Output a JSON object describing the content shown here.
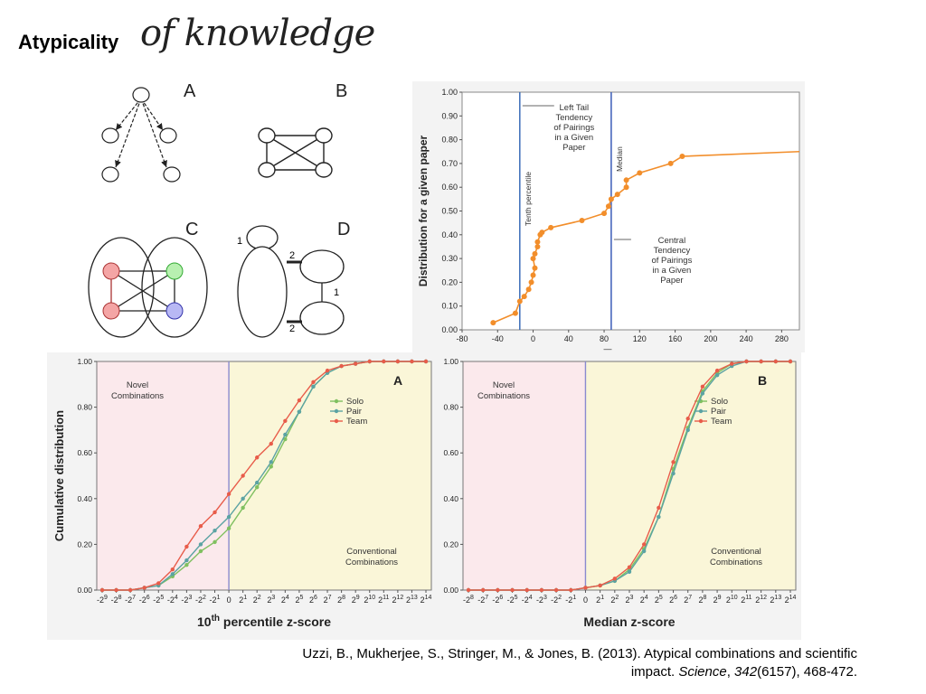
{
  "slide": {
    "title_bold": "Atypicality",
    "title_script": "of knowledge",
    "citation": {
      "authors_year_title": "Uzzi, B., Mukherjee, S., Stringer, M., & Jones, B. (2013). Atypical combinations and scientific",
      "impact_prefix": "impact. ",
      "journal": "Science",
      "sep": ", ",
      "volume": "342",
      "issue_pages": "(6157), 468-472."
    }
  },
  "network_diagrams": {
    "labels": [
      "A",
      "B",
      "C",
      "D"
    ],
    "d_edge_labels": [
      "1",
      "2",
      "1",
      "2"
    ],
    "node_colors": {
      "red": "#f4a5a5",
      "green": "#b8f0b0",
      "blue": "#b8b8f4"
    }
  },
  "chart_data": [
    {
      "type": "line",
      "panel": "A",
      "ylabel": "Distribution for a given paper",
      "xlabel": "—",
      "xlim": [
        -80,
        300
      ],
      "ylim": [
        0,
        1.0
      ],
      "x_ticks": [
        "-80",
        "-40",
        "0",
        "40",
        "80",
        "120",
        "160",
        "200",
        "240",
        "280"
      ],
      "y_ticks": [
        "0.00",
        "0.10",
        "0.20",
        "0.30",
        "0.40",
        "0.50",
        "0.60",
        "0.70",
        "0.80",
        "0.90",
        "1.00"
      ],
      "color": "#f28e2b",
      "vlines": [
        {
          "x": -15,
          "label": "Tenth percentile",
          "color": "#3b6db8"
        },
        {
          "x": 88,
          "label": "Median",
          "color": "#3b5cb8"
        }
      ],
      "annotations": [
        {
          "text": [
            "Left Tail",
            "Tendency",
            "of Pairings",
            "in a Given",
            "Paper"
          ]
        },
        {
          "text": [
            "Central",
            "Tendency",
            "of Pairings",
            "in a Given",
            "Paper"
          ]
        }
      ],
      "points": [
        [
          -45,
          0.03
        ],
        [
          -20,
          0.07
        ],
        [
          -15,
          0.12
        ],
        [
          -10,
          0.14
        ],
        [
          -5,
          0.17
        ],
        [
          -2,
          0.2
        ],
        [
          0,
          0.23
        ],
        [
          2,
          0.26
        ],
        [
          0,
          0.3
        ],
        [
          2,
          0.32
        ],
        [
          5,
          0.35
        ],
        [
          5,
          0.37
        ],
        [
          8,
          0.4
        ],
        [
          10,
          0.41
        ],
        [
          20,
          0.43
        ],
        [
          55,
          0.46
        ],
        [
          80,
          0.49
        ],
        [
          85,
          0.52
        ],
        [
          88,
          0.55
        ],
        [
          95,
          0.57
        ],
        [
          105,
          0.6
        ],
        [
          105,
          0.63
        ],
        [
          120,
          0.66
        ],
        [
          155,
          0.7
        ],
        [
          168,
          0.73
        ],
        [
          300,
          0.75
        ]
      ]
    },
    {
      "type": "line",
      "panel": "A",
      "xlabel_pre": "10",
      "xlabel_sup": "th",
      "xlabel_post": " percentile z-score",
      "ylabel": "Cumulative distribution",
      "region_left": [
        "Novel",
        "Combinations"
      ],
      "region_right": [
        "Conventional",
        "Combinations"
      ],
      "y_ticks": [
        "0.00",
        "0.20",
        "0.40",
        "0.60",
        "0.80",
        "1.00"
      ],
      "x_tick_labels": [
        "-2^9",
        "-2^8",
        "-2^7",
        "-2^6",
        "-2^5",
        "-2^4",
        "-2^3",
        "-2^2",
        "-2^1",
        "0",
        "2^1",
        "2^2",
        "2^3",
        "2^4",
        "2^5",
        "2^6",
        "2^7",
        "2^8",
        "2^9",
        "2^10",
        "2^11",
        "2^12",
        "2^13",
        "2^14"
      ],
      "divider_index": 9,
      "series": [
        {
          "name": "Solo",
          "color": "#80c060",
          "values": [
            0,
            0,
            0,
            0.01,
            0.02,
            0.06,
            0.11,
            0.17,
            0.21,
            0.27,
            0.36,
            0.45,
            0.54,
            0.66,
            0.78,
            0.89,
            0.95,
            0.98,
            0.99,
            1.0,
            1.0,
            1.0,
            1.0,
            1.0
          ]
        },
        {
          "name": "Pair",
          "color": "#5ba3a3",
          "values": [
            0,
            0,
            0,
            0.01,
            0.02,
            0.07,
            0.13,
            0.2,
            0.26,
            0.32,
            0.4,
            0.47,
            0.56,
            0.68,
            0.78,
            0.89,
            0.95,
            0.98,
            0.99,
            1.0,
            1.0,
            1.0,
            1.0,
            1.0
          ]
        },
        {
          "name": "Team",
          "color": "#e85c4a",
          "values": [
            0,
            0,
            0,
            0.01,
            0.03,
            0.09,
            0.19,
            0.28,
            0.34,
            0.42,
            0.5,
            0.58,
            0.64,
            0.74,
            0.83,
            0.91,
            0.96,
            0.98,
            0.99,
            1.0,
            1.0,
            1.0,
            1.0,
            1.0
          ]
        }
      ]
    },
    {
      "type": "line",
      "panel": "B",
      "xlabel": "Median z-score",
      "region_left": [
        "Novel",
        "Combinations"
      ],
      "region_right": [
        "Conventional",
        "Combinations"
      ],
      "y_ticks": [
        "0.00",
        "0.20",
        "0.40",
        "0.60",
        "0.80",
        "1.00"
      ],
      "x_tick_labels": [
        "-2^8",
        "-2^7",
        "-2^6",
        "-2^5",
        "-2^4",
        "-2^3",
        "-2^2",
        "-2^1",
        "0",
        "2^1",
        "2^2",
        "2^3",
        "2^4",
        "2^5",
        "2^6",
        "2^7",
        "2^8",
        "2^9",
        "2^10",
        "2^11",
        "2^12",
        "2^13",
        "2^14"
      ],
      "divider_index": 8,
      "series": [
        {
          "name": "Solo",
          "color": "#80c060",
          "values": [
            0,
            0,
            0,
            0,
            0,
            0,
            0,
            0,
            0.01,
            0.02,
            0.04,
            0.09,
            0.18,
            0.32,
            0.53,
            0.71,
            0.87,
            0.95,
            0.99,
            1.0,
            1.0,
            1.0,
            1.0
          ]
        },
        {
          "name": "Pair",
          "color": "#5ba3a3",
          "values": [
            0,
            0,
            0,
            0,
            0,
            0,
            0,
            0,
            0.01,
            0.02,
            0.04,
            0.08,
            0.17,
            0.32,
            0.51,
            0.7,
            0.86,
            0.94,
            0.98,
            1.0,
            1.0,
            1.0,
            1.0
          ]
        },
        {
          "name": "Team",
          "color": "#e85c4a",
          "values": [
            0,
            0,
            0,
            0,
            0,
            0,
            0,
            0,
            0.01,
            0.02,
            0.05,
            0.1,
            0.2,
            0.36,
            0.56,
            0.75,
            0.89,
            0.96,
            0.99,
            1.0,
            1.0,
            1.0,
            1.0
          ]
        }
      ]
    }
  ]
}
